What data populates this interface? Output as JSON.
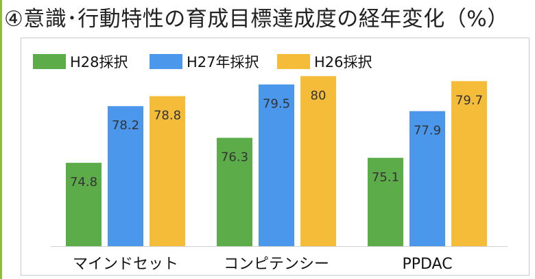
{
  "page": {
    "title": "④意識･行動特性の育成目標達成度の経年変化（%）"
  },
  "colors": {
    "H28": "#5cad4a",
    "H27": "#4a97ec",
    "H26": "#f5bc3a",
    "frame_accent": "#8dbb3c"
  },
  "chart_data": {
    "type": "bar",
    "title": "④意識･行動特性の育成目標達成度の経年変化（%）",
    "categories": [
      "マインドセット",
      "コンピテンシー",
      "PPDAC"
    ],
    "series": [
      {
        "name": "H28採択",
        "values": [
          74.8,
          76.3,
          75.1
        ],
        "labels": [
          "74.8",
          "76.3",
          "75.1"
        ]
      },
      {
        "name": "H27年採択",
        "values": [
          78.2,
          79.5,
          77.9
        ],
        "labels": [
          "78.2",
          "79.5",
          "77.9"
        ]
      },
      {
        "name": "H26採択",
        "values": [
          78.8,
          80,
          79.7
        ],
        "labels": [
          "78.8",
          "80",
          "79.7"
        ]
      }
    ],
    "xlabel": "",
    "ylabel": "",
    "ylim": [
      69.8,
      80.3
    ],
    "grid": false,
    "legend_position": "top-left"
  }
}
